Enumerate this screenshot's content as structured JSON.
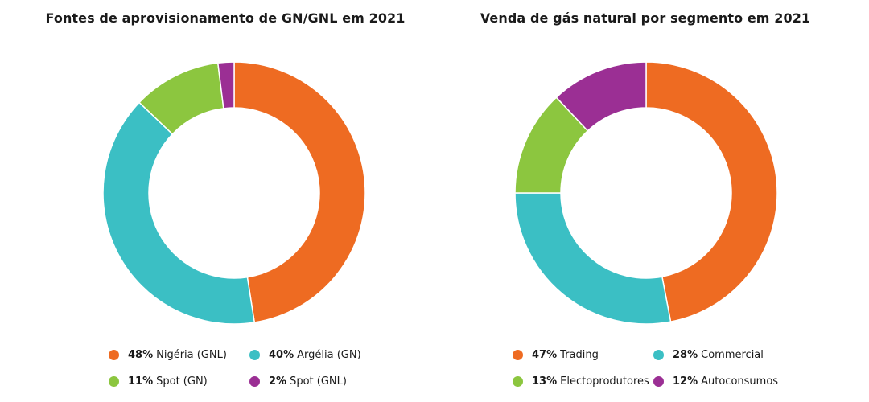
{
  "chart_data": [
    {
      "type": "pie",
      "title": "Fontes de aprovisionamento de GN/GNL em 2021",
      "categories": [
        "Nigéria (GNL)",
        "Argélia (GN)",
        "Spot (GN)",
        "Spot (GNL)"
      ],
      "values": [
        48,
        40,
        11,
        2
      ],
      "value_labels": [
        "48%",
        "40%",
        "11%",
        "2%"
      ],
      "colors": [
        "#ee6b22",
        "#3bbfc4",
        "#8cc63f",
        "#9b2f94"
      ],
      "legend": "bottom"
    },
    {
      "type": "pie",
      "title": "Venda de gás natural por segmento em 2021",
      "categories": [
        "Trading",
        "Commercial",
        "Electoprodutores",
        "Autoconsumos"
      ],
      "values": [
        47,
        28,
        13,
        12
      ],
      "value_labels": [
        "47%",
        "28%",
        "13%",
        "12%"
      ],
      "colors": [
        "#ee6b22",
        "#3bbfc4",
        "#8cc63f",
        "#9b2f94"
      ],
      "legend": "bottom"
    }
  ]
}
